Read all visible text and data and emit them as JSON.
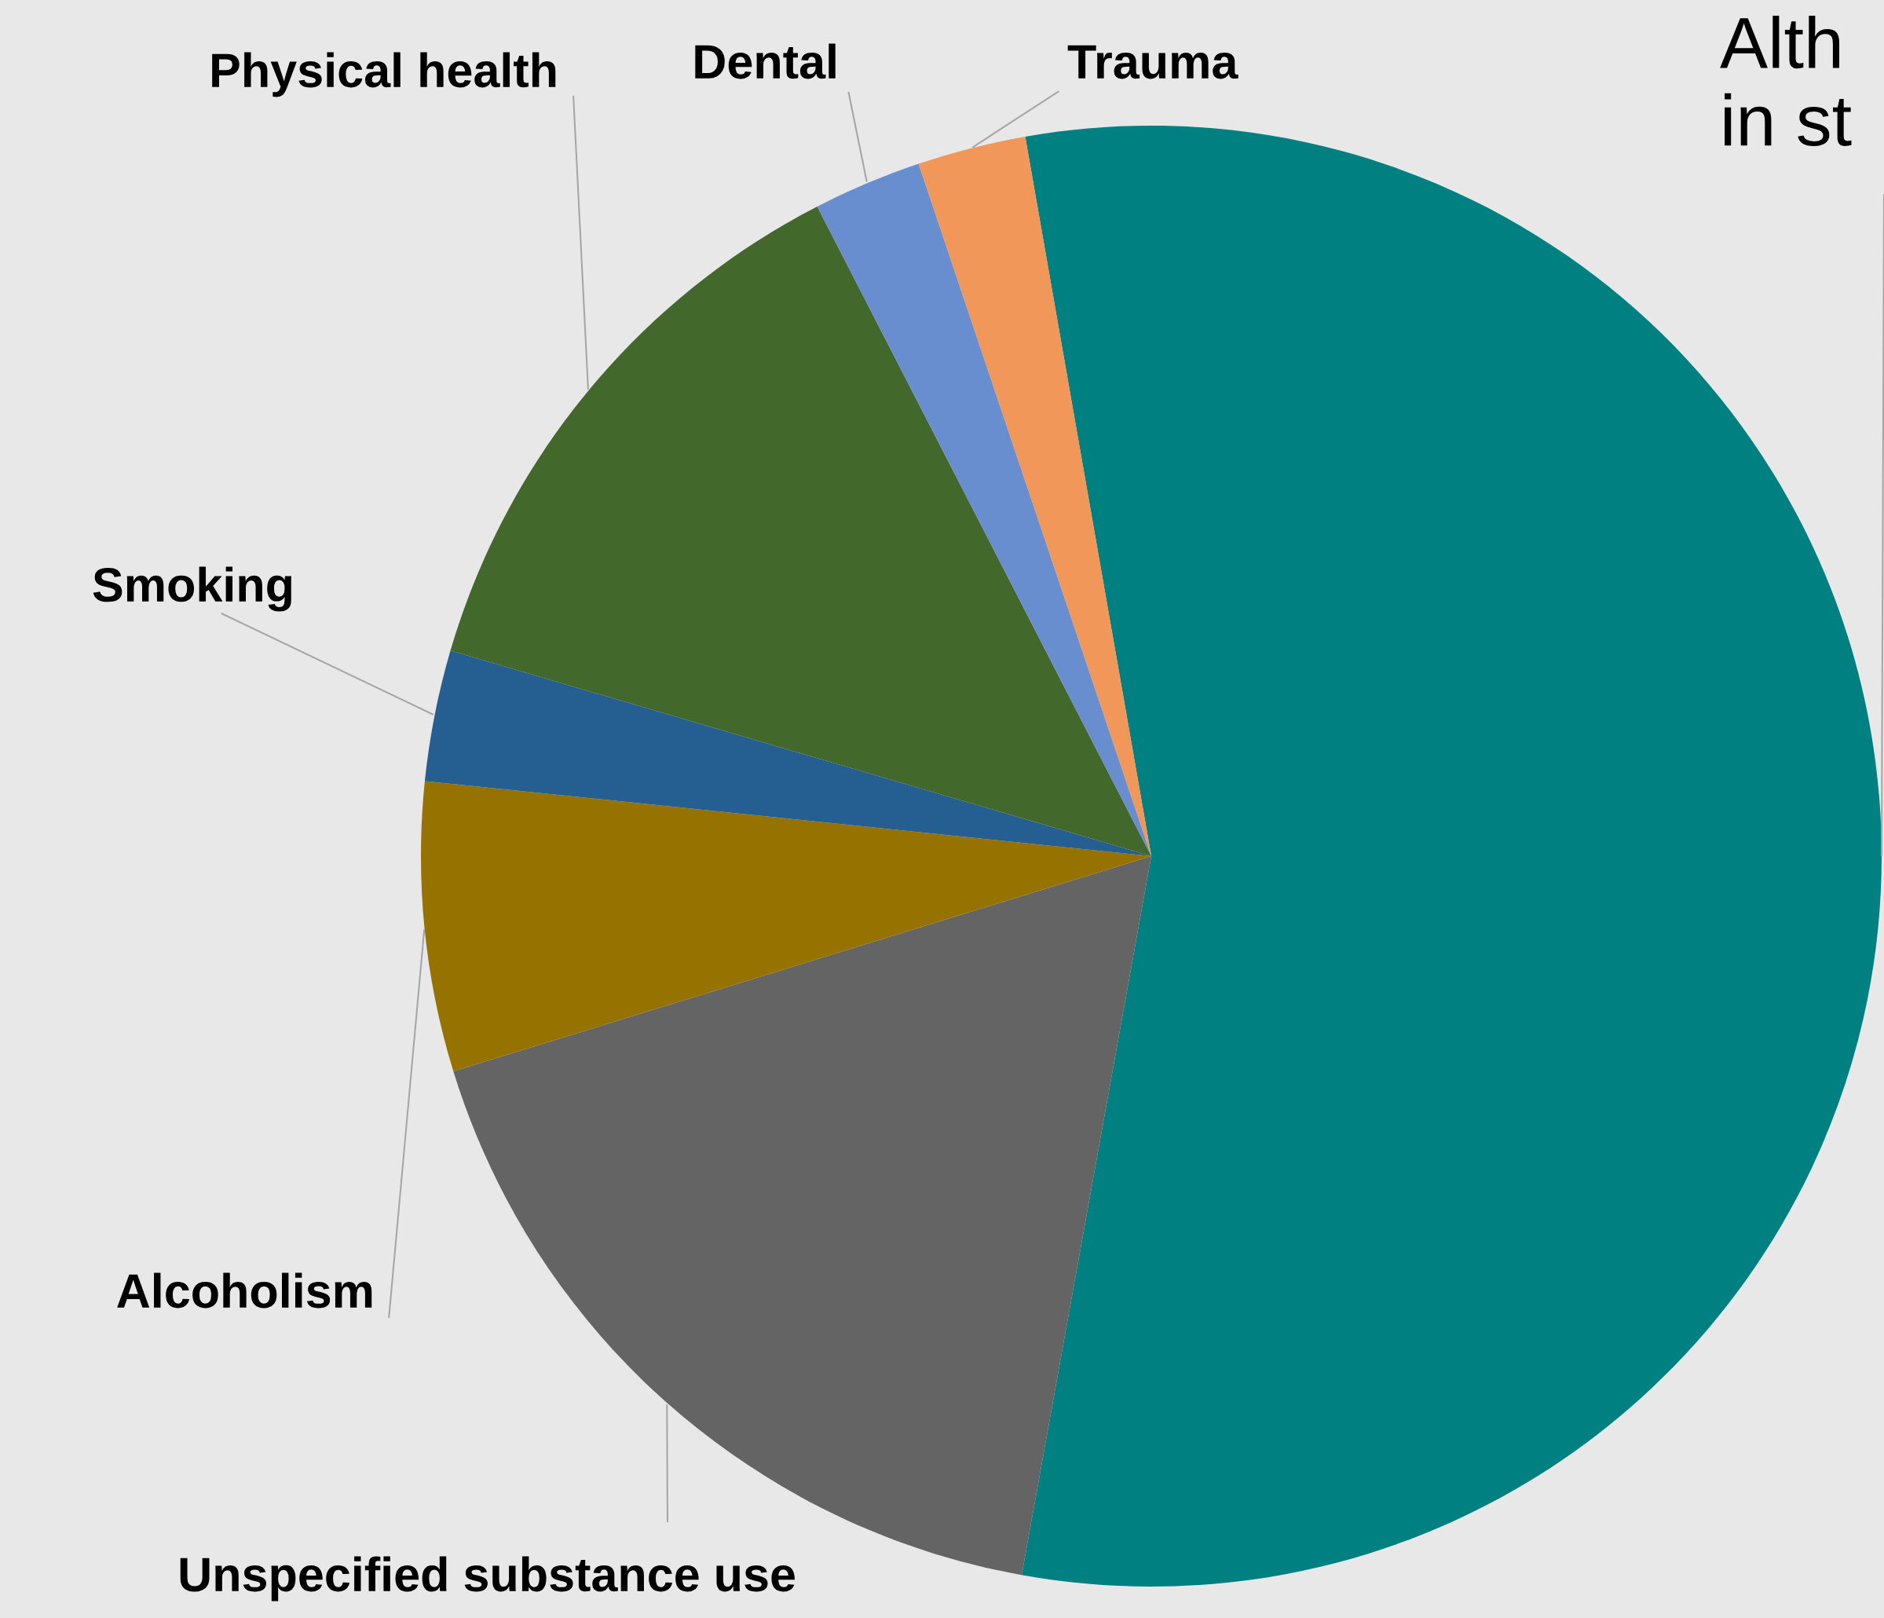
{
  "chart_data": {
    "type": "pie",
    "categories": [
      "Alth\nin st",
      "Unspecified substance use",
      "Alcoholism",
      "Smoking",
      "Physical health",
      "Dental",
      "Trauma"
    ],
    "values": [
      55.6,
      17.4,
      6.4,
      2.9,
      12.9,
      2.4,
      2.4
    ],
    "colors": [
      "#008080",
      "#646464",
      "#967300",
      "#255e91",
      "#43682b",
      "#698ed0",
      "#f1975a"
    ],
    "legend": false
  }
}
